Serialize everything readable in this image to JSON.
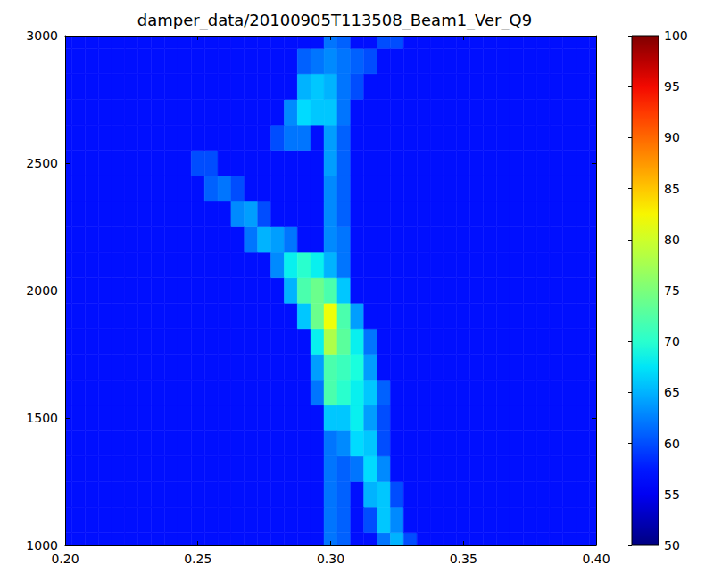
{
  "chart_data": {
    "type": "heatmap",
    "title": "damper_data/20100905T113508_Beam1_Ver_Q9",
    "x": [
      0.2,
      0.205,
      0.21,
      0.215,
      0.22,
      0.225,
      0.23,
      0.235,
      0.24,
      0.245,
      0.25,
      0.255,
      0.26,
      0.265,
      0.27,
      0.275,
      0.28,
      0.285,
      0.29,
      0.295,
      0.3,
      0.305,
      0.31,
      0.315,
      0.32,
      0.325,
      0.33,
      0.335,
      0.34,
      0.345,
      0.35,
      0.355,
      0.36,
      0.365,
      0.37,
      0.375,
      0.38,
      0.385,
      0.39,
      0.395,
      0.4
    ],
    "y": [
      1000,
      1100,
      1200,
      1300,
      1400,
      1500,
      1600,
      1700,
      1800,
      1900,
      2000,
      2100,
      2200,
      2300,
      2400,
      2500,
      2600,
      2700,
      2800,
      2900,
      3000
    ],
    "z": [
      [
        57,
        57,
        57,
        57,
        57,
        57,
        57,
        57,
        57,
        57,
        57,
        57,
        57,
        57,
        57,
        57,
        57,
        57,
        57,
        57,
        62,
        61,
        57,
        57,
        62,
        65,
        60,
        57,
        57,
        57,
        57,
        57,
        57,
        57,
        57,
        57,
        57,
        57,
        57,
        57,
        57
      ],
      [
        57,
        57,
        57,
        57,
        57,
        57,
        57,
        57,
        57,
        57,
        57,
        57,
        57,
        57,
        57,
        57,
        57,
        57,
        57,
        57,
        62,
        61,
        57,
        60,
        66,
        63,
        57,
        57,
        57,
        57,
        57,
        57,
        57,
        57,
        57,
        57,
        57,
        57,
        57,
        57,
        57
      ],
      [
        57,
        57,
        57,
        57,
        57,
        57,
        57,
        57,
        57,
        57,
        57,
        57,
        57,
        57,
        57,
        57,
        57,
        57,
        57,
        57,
        62,
        61,
        57,
        65,
        66,
        60,
        57,
        57,
        57,
        57,
        57,
        57,
        57,
        57,
        57,
        57,
        57,
        57,
        57,
        57,
        57
      ],
      [
        57,
        57,
        57,
        57,
        57,
        57,
        57,
        57,
        57,
        57,
        57,
        57,
        57,
        57,
        57,
        57,
        57,
        57,
        57,
        57,
        62,
        61,
        62,
        67,
        63,
        57,
        57,
        57,
        57,
        57,
        57,
        57,
        57,
        57,
        57,
        57,
        57,
        57,
        57,
        57,
        57
      ],
      [
        57,
        57,
        57,
        57,
        57,
        57,
        57,
        57,
        57,
        57,
        57,
        57,
        57,
        57,
        57,
        57,
        57,
        57,
        57,
        57,
        62,
        63,
        67,
        66,
        60,
        57,
        57,
        57,
        57,
        57,
        57,
        57,
        57,
        57,
        57,
        57,
        57,
        57,
        57,
        57,
        57
      ],
      [
        57,
        57,
        57,
        57,
        57,
        57,
        57,
        57,
        57,
        57,
        57,
        57,
        57,
        57,
        57,
        57,
        57,
        57,
        57,
        57,
        66,
        66,
        68,
        64,
        60,
        57,
        57,
        57,
        57,
        57,
        57,
        57,
        57,
        57,
        57,
        57,
        57,
        57,
        57,
        57,
        57
      ],
      [
        57,
        57,
        57,
        57,
        57,
        57,
        57,
        57,
        57,
        57,
        57,
        57,
        57,
        57,
        57,
        57,
        57,
        57,
        57,
        62,
        72,
        70,
        68,
        66,
        61,
        57,
        57,
        57,
        57,
        57,
        57,
        57,
        57,
        57,
        57,
        57,
        57,
        57,
        57,
        57,
        57
      ],
      [
        57,
        57,
        57,
        57,
        57,
        57,
        57,
        57,
        57,
        57,
        57,
        57,
        57,
        57,
        57,
        57,
        57,
        57,
        57,
        64,
        72,
        71,
        69,
        64,
        57,
        57,
        57,
        57,
        57,
        57,
        57,
        57,
        57,
        57,
        57,
        57,
        57,
        57,
        57,
        57,
        57
      ],
      [
        57,
        57,
        57,
        57,
        57,
        57,
        57,
        57,
        57,
        57,
        57,
        57,
        57,
        57,
        57,
        57,
        57,
        57,
        57,
        68,
        78,
        73,
        68,
        62,
        57,
        57,
        57,
        57,
        57,
        57,
        57,
        57,
        57,
        57,
        57,
        57,
        57,
        57,
        57,
        57,
        57
      ],
      [
        57,
        57,
        57,
        57,
        57,
        57,
        57,
        57,
        57,
        57,
        57,
        57,
        57,
        57,
        57,
        57,
        57,
        57,
        66,
        74,
        82,
        72,
        64,
        57,
        57,
        57,
        57,
        57,
        57,
        57,
        57,
        57,
        57,
        57,
        57,
        57,
        57,
        57,
        57,
        57,
        57
      ],
      [
        57,
        57,
        57,
        57,
        57,
        57,
        57,
        57,
        57,
        57,
        57,
        57,
        57,
        57,
        57,
        57,
        57,
        65,
        72,
        74,
        72,
        66,
        57,
        57,
        57,
        57,
        57,
        57,
        57,
        57,
        57,
        57,
        57,
        57,
        57,
        57,
        57,
        57,
        57,
        57,
        57
      ],
      [
        57,
        57,
        57,
        57,
        57,
        57,
        57,
        57,
        57,
        57,
        57,
        57,
        57,
        57,
        57,
        57,
        63,
        68,
        70,
        68,
        65,
        62,
        57,
        57,
        57,
        57,
        57,
        57,
        57,
        57,
        57,
        57,
        57,
        57,
        57,
        57,
        57,
        57,
        57,
        57,
        57
      ],
      [
        57,
        57,
        57,
        57,
        57,
        57,
        57,
        57,
        57,
        57,
        57,
        57,
        57,
        57,
        62,
        65,
        64,
        62,
        57,
        57,
        63,
        62,
        57,
        57,
        57,
        57,
        57,
        57,
        57,
        57,
        57,
        57,
        57,
        57,
        57,
        57,
        57,
        57,
        57,
        57,
        57
      ],
      [
        57,
        57,
        57,
        57,
        57,
        57,
        57,
        57,
        57,
        57,
        57,
        57,
        57,
        63,
        64,
        60,
        57,
        57,
        57,
        57,
        63,
        61,
        57,
        57,
        57,
        57,
        57,
        57,
        57,
        57,
        57,
        57,
        57,
        57,
        57,
        57,
        57,
        57,
        57,
        57,
        57
      ],
      [
        57,
        57,
        57,
        57,
        57,
        57,
        57,
        57,
        57,
        57,
        57,
        61,
        62,
        60,
        57,
        57,
        57,
        57,
        57,
        57,
        63,
        61,
        57,
        57,
        57,
        57,
        57,
        57,
        57,
        57,
        57,
        57,
        57,
        57,
        57,
        57,
        57,
        57,
        57,
        57,
        57
      ],
      [
        57,
        57,
        57,
        57,
        57,
        57,
        57,
        57,
        57,
        57,
        60,
        60,
        57,
        57,
        57,
        57,
        57,
        57,
        57,
        57,
        64,
        61,
        57,
        57,
        57,
        57,
        57,
        57,
        57,
        57,
        57,
        57,
        57,
        57,
        57,
        57,
        57,
        57,
        57,
        57,
        57
      ],
      [
        57,
        57,
        57,
        57,
        57,
        57,
        57,
        57,
        57,
        57,
        57,
        57,
        57,
        57,
        57,
        57,
        60,
        62,
        62,
        57,
        64,
        61,
        57,
        57,
        57,
        57,
        57,
        57,
        57,
        57,
        57,
        57,
        57,
        57,
        57,
        57,
        57,
        57,
        57,
        57,
        57
      ],
      [
        57,
        57,
        57,
        57,
        57,
        57,
        57,
        57,
        57,
        57,
        57,
        57,
        57,
        57,
        57,
        57,
        57,
        63,
        67,
        66,
        66,
        62,
        57,
        57,
        57,
        57,
        57,
        57,
        57,
        57,
        57,
        57,
        57,
        57,
        57,
        57,
        57,
        57,
        57,
        57,
        57
      ],
      [
        57,
        57,
        57,
        57,
        57,
        57,
        57,
        57,
        57,
        57,
        57,
        57,
        57,
        57,
        57,
        57,
        57,
        57,
        65,
        66,
        65,
        62,
        60,
        57,
        57,
        57,
        57,
        57,
        57,
        57,
        57,
        57,
        57,
        57,
        57,
        57,
        57,
        57,
        57,
        57,
        57
      ],
      [
        57,
        57,
        57,
        57,
        57,
        57,
        57,
        57,
        57,
        57,
        57,
        57,
        57,
        57,
        57,
        57,
        57,
        57,
        61,
        62,
        63,
        62,
        61,
        60,
        57,
        57,
        57,
        57,
        57,
        57,
        57,
        57,
        57,
        57,
        57,
        57,
        57,
        57,
        57,
        57,
        57
      ],
      [
        57,
        57,
        57,
        57,
        57,
        57,
        57,
        57,
        57,
        57,
        57,
        57,
        57,
        57,
        57,
        57,
        57,
        57,
        57,
        57,
        62,
        61,
        57,
        57,
        60,
        60,
        57,
        57,
        57,
        57,
        57,
        57,
        57,
        57,
        57,
        57,
        57,
        57,
        57,
        57,
        57
      ]
    ],
    "xlim": [
      0.2,
      0.4
    ],
    "xticks": [
      {
        "value": 0.2,
        "label": "0.20"
      },
      {
        "value": 0.25,
        "label": "0.25"
      },
      {
        "value": 0.3,
        "label": "0.30"
      },
      {
        "value": 0.35,
        "label": "0.35"
      },
      {
        "value": 0.4,
        "label": "0.40"
      }
    ],
    "ylim": [
      1000,
      3000
    ],
    "yticks": [
      1000,
      1500,
      2000,
      2500,
      3000
    ],
    "colorbar": {
      "range": [
        50,
        100
      ],
      "ticks": [
        50,
        55,
        60,
        65,
        70,
        75,
        80,
        85,
        90,
        95,
        100
      ]
    }
  }
}
